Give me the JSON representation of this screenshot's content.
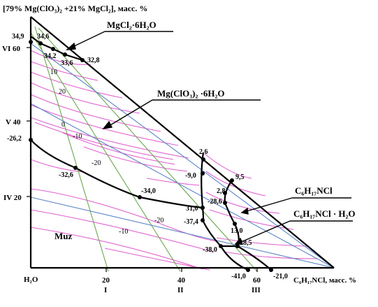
{
  "diagram": {
    "y_axis_title": "[79% Mg(ClO₃)₂ +21% MgCl₂], масс. %",
    "x_axis_title": "C₆H₁₇NCl, масс. %",
    "origin_label": "H₂O",
    "y_ticks": [
      {
        "label": "VI 60"
      },
      {
        "label": "V 40"
      },
      {
        "label": "IV 20"
      }
    ],
    "x_ticks": [
      {
        "value": "20",
        "roman": "I"
      },
      {
        "value": "40",
        "roman": "II"
      },
      {
        "value": "60",
        "roman": "III"
      }
    ],
    "fields": {
      "ice": "Muz",
      "mgcl2": "MgCl₂·6H₂O",
      "mgclo3": "Mg(ClO₃)₂ ·6H₂O",
      "c6": "C₆H₁₇NCl",
      "c6h2o": "C₆H₁₇NCl · H₂O"
    },
    "point_labels": {
      "p349": "34,9",
      "p346": "34,6",
      "p342": "34,2",
      "p336": "33,6",
      "p328": "32,8",
      "p262": "-26,2",
      "p326": "-32,6",
      "p340": "-34,0",
      "p310": "31,0",
      "p26": "2,6",
      "p90": "-9,0",
      "p95": "9,5",
      "p28": "2,8",
      "p286": "-28,6",
      "p374": "-37,4",
      "p130": "13,0",
      "p380": "-38,0",
      "p185": "18,5",
      "p410": "-41,0",
      "p210": "-21,0"
    },
    "isotherm_labels": {
      "i10": "10",
      "i20": "20",
      "i0": "0",
      "im10": "-10",
      "im20a": "-20",
      "im20b": "-20",
      "im10b": "-10"
    },
    "colors": {
      "isotherm": "#e060d0",
      "section_green": "#6aa84f",
      "section_blue": "#5b86c5",
      "curve": "#000000"
    }
  }
}
